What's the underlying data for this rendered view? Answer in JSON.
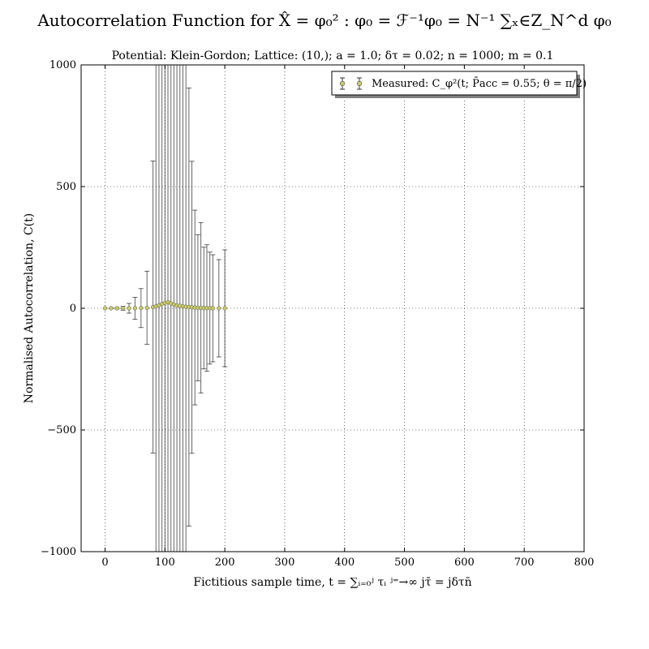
{
  "chart_data": {
    "type": "scatter",
    "title": "Autocorrelation Function for X̂ = φ₀² : φ₀ = ℱ⁻¹φ₀ = N⁻¹ ∑ₓ∈Z_N^d φ₀",
    "subtitle": "Potential: Klein-Gordon; Lattice: (10,); a = 1.0; δτ = 0.02; n = 1000; m = 0.1",
    "xlabel": "Fictitious sample time, t = ∑ᵢ₌₀ʲ τᵢ ʲ⁼→∞ jτ̄ = jδτn̄",
    "ylabel": "Normalised Autocorrelation, C(t)",
    "xlim": [
      -40,
      800
    ],
    "ylim": [
      -1000,
      1000
    ],
    "xticks": [
      0,
      100,
      200,
      300,
      400,
      500,
      600,
      700,
      800
    ],
    "xtick_labels": [
      "0",
      "100",
      "200",
      "300",
      "400",
      "500",
      "600",
      "700",
      "800"
    ],
    "yticks": [
      -1000,
      -500,
      0,
      500,
      1000
    ],
    "ytick_labels": [
      "−1000",
      "−500",
      "0",
      "500",
      "1000"
    ],
    "grid": true,
    "legend_position": "top-right",
    "series": [
      {
        "name": "Measured: C_φ²(t; P̄acc = 0.55; θ = π/2)",
        "marker_color": "#c8c96a",
        "errorbar_color": "#000000",
        "x": [
          0,
          10,
          20,
          30,
          40,
          50,
          60,
          70,
          80,
          85,
          90,
          95,
          100,
          105,
          110,
          115,
          120,
          125,
          130,
          135,
          140,
          145,
          150,
          155,
          160,
          165,
          170,
          175,
          180,
          190,
          200
        ],
        "y": [
          0,
          0,
          0,
          0,
          0,
          0,
          1,
          2,
          5,
          8,
          12,
          18,
          22,
          25,
          20,
          15,
          12,
          10,
          8,
          6,
          5,
          4,
          3,
          2,
          2,
          1,
          1,
          1,
          0,
          0,
          0
        ],
        "err": [
          0,
          1,
          3,
          8,
          20,
          45,
          80,
          150,
          600,
          1500,
          1500,
          1500,
          1500,
          1500,
          1500,
          1500,
          1500,
          1500,
          1500,
          1200,
          900,
          600,
          400,
          300,
          350,
          250,
          260,
          230,
          220,
          200,
          240
        ]
      }
    ]
  }
}
